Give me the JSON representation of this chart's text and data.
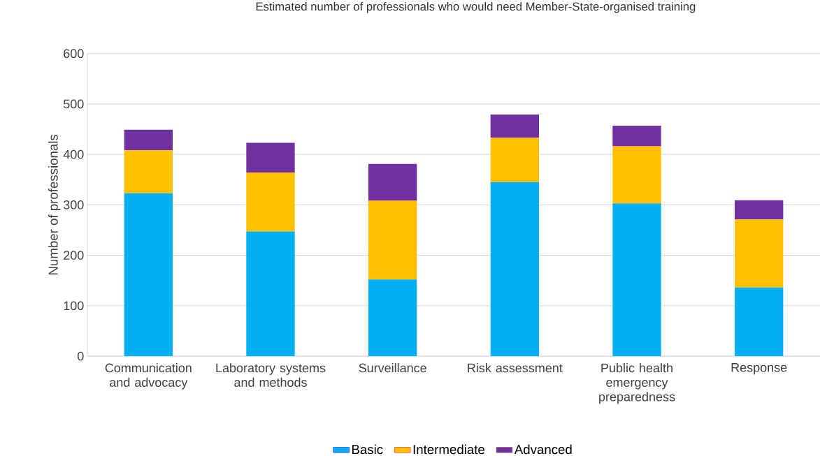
{
  "chart_data": {
    "type": "bar",
    "stacked": true,
    "title": "Estimated number of professionals who would need Member-State-organised training",
    "ylabel": "Number of professionals",
    "categories": [
      "Communication and advocacy",
      "Laboratory systems and methods",
      "Surveillance",
      "Risk assessment",
      "Public health emergency preparedness",
      "Response"
    ],
    "series": [
      {
        "name": "Basic",
        "color": "#00b0f0",
        "values": [
          323,
          247,
          152,
          345,
          303,
          136
        ]
      },
      {
        "name": "Intermediate",
        "color": "#ffc000",
        "values": [
          85,
          117,
          156,
          88,
          113,
          135
        ]
      },
      {
        "name": "Advanced",
        "color": "#7030a0",
        "values": [
          41,
          59,
          73,
          46,
          41,
          38
        ]
      }
    ],
    "ylim": [
      0,
      600
    ],
    "yticks": [
      0,
      100,
      200,
      300,
      400,
      500,
      600
    ],
    "grid": "y",
    "legend": "bottom"
  }
}
